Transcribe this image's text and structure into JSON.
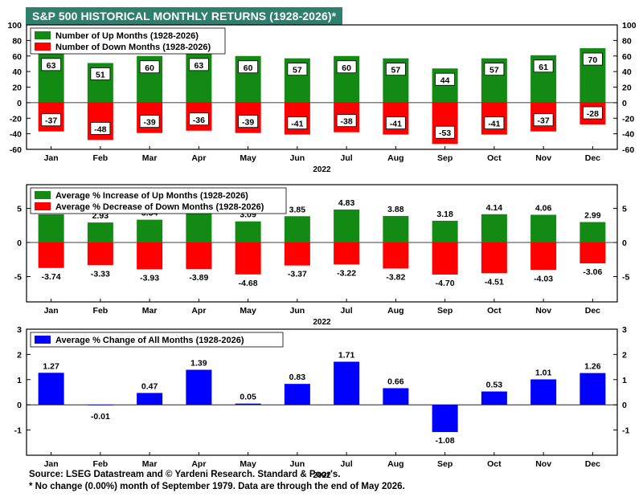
{
  "title": "S&P 500 HISTORICAL MONTHLY RETURNS (1928-2026)*",
  "footer": {
    "source": "Source: LSEG Datastream and © Yardeni Research. Standard & Poor's.",
    "note": "* No change (0.00%) month of September 1979. Data are through the end of May 2026."
  },
  "colors": {
    "title_bg": "#2f7f6e",
    "up": "#138a13",
    "down": "#ff0000",
    "all": "#0000ff"
  },
  "chart_data": [
    {
      "type": "bar",
      "categories": [
        "Jan",
        "Feb",
        "Mar",
        "Apr",
        "May",
        "Jun",
        "Jul",
        "Aug",
        "Sep",
        "Oct",
        "Nov",
        "Dec"
      ],
      "xlabel": "2022",
      "ylim": [
        -60,
        100
      ],
      "yticks": [
        -60,
        -40,
        -20,
        0,
        20,
        40,
        60,
        80,
        100
      ],
      "ytick_labels": [
        "-60",
        "-40",
        "-20",
        "0",
        "20",
        "40",
        "60",
        "80",
        "100"
      ],
      "legend_position": "top-left",
      "series": [
        {
          "name": "Number of Up Months (1928-2026)",
          "values": [
            63,
            51,
            60,
            63,
            60,
            57,
            60,
            57,
            44,
            57,
            61,
            70
          ],
          "labels": [
            "63",
            "51",
            "60",
            "63",
            "60",
            "57",
            "60",
            "57",
            "44",
            "57",
            "61",
            "70"
          ]
        },
        {
          "name": "Number of Down Months (1928-2026)",
          "values": [
            -37,
            -48,
            -39,
            -36,
            -39,
            -41,
            -38,
            -41,
            -53,
            -41,
            -37,
            -28
          ],
          "labels": [
            "-37",
            "-48",
            "-39",
            "-36",
            "-39",
            "-41",
            "-38",
            "-41",
            "-53",
            "-41",
            "-37",
            "-28"
          ]
        }
      ]
    },
    {
      "type": "bar",
      "categories": [
        "Jan",
        "Feb",
        "Mar",
        "Apr",
        "May",
        "Jun",
        "Jul",
        "Aug",
        "Sep",
        "Oct",
        "Nov",
        "Dec"
      ],
      "xlabel": "2022",
      "ylim": [
        -8,
        8
      ],
      "yticks": [
        -5,
        0,
        5
      ],
      "ytick_labels": [
        "-5",
        "0",
        "5"
      ],
      "legend_position": "top-left",
      "series": [
        {
          "name": "Average % Increase of Up Months (1928-2026)",
          "values": [
            4.12,
            2.93,
            3.34,
            4.31,
            3.09,
            3.85,
            4.83,
            3.88,
            3.18,
            4.14,
            4.06,
            2.99
          ],
          "labels": [
            "4.12",
            "2.93",
            "3.34",
            "4.31",
            "3.09",
            "3.85",
            "4.83",
            "3.88",
            "3.18",
            "4.14",
            "4.06",
            "2.99"
          ]
        },
        {
          "name": "Average % Decrease of Down Months (1928-2026)",
          "values": [
            -3.74,
            -3.33,
            -3.93,
            -3.89,
            -4.68,
            -3.37,
            -3.22,
            -3.82,
            -4.7,
            -4.51,
            -4.03,
            -3.06
          ],
          "labels": [
            "-3.74",
            "-3.33",
            "-3.93",
            "-3.89",
            "-4.68",
            "-3.37",
            "-3.22",
            "-3.82",
            "-4.70",
            "-4.51",
            "-4.03",
            "-3.06"
          ]
        }
      ]
    },
    {
      "type": "bar",
      "categories": [
        "Jan",
        "Feb",
        "Mar",
        "Apr",
        "May",
        "Jun",
        "Jul",
        "Aug",
        "Sep",
        "Oct",
        "Nov",
        "Dec"
      ],
      "xlabel": "2022",
      "ylim": [
        -2,
        3
      ],
      "yticks": [
        -1,
        0,
        1,
        2,
        3
      ],
      "ytick_labels": [
        "-1",
        "0",
        "1",
        "2",
        "3"
      ],
      "legend_position": "top-left",
      "series": [
        {
          "name": "Average % Change of All Months (1928-2026)",
          "values": [
            1.27,
            -0.01,
            0.47,
            1.39,
            0.05,
            0.83,
            1.71,
            0.66,
            -1.08,
            0.53,
            1.01,
            1.26
          ],
          "labels": [
            "1.27",
            "-0.01",
            "0.47",
            "1.39",
            "0.05",
            "0.83",
            "1.71",
            "0.66",
            "-1.08",
            "0.53",
            "1.01",
            "1.26"
          ]
        }
      ]
    }
  ]
}
